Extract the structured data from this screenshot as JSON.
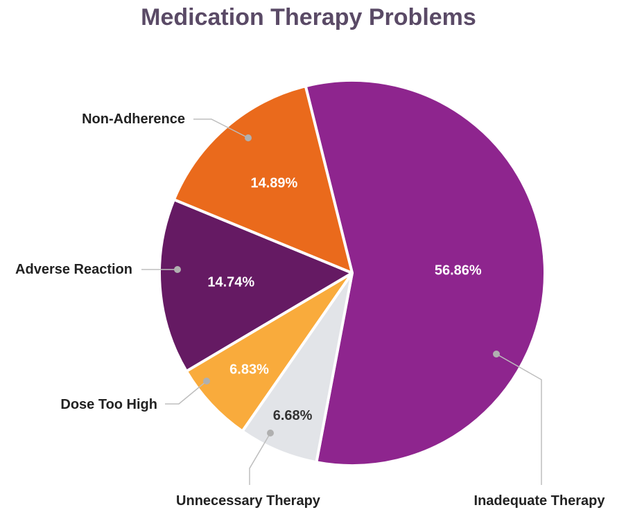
{
  "chart_data": {
    "type": "pie",
    "title": "Medication Therapy Problems",
    "slices": [
      {
        "label": "Inadequate Therapy",
        "value": 56.86,
        "display": "56.86%",
        "color": "#8e258e",
        "text_color": "#ffffff"
      },
      {
        "label": "Unnecessary Therapy",
        "value": 6.68,
        "display": "6.68%",
        "color": "#e2e4e8",
        "text_color": "#333333"
      },
      {
        "label": "Dose Too High",
        "value": 6.83,
        "display": "6.83%",
        "color": "#f9ab3c",
        "text_color": "#ffffff"
      },
      {
        "label": "Adverse Reaction",
        "value": 14.74,
        "display": "14.74%",
        "color": "#651a63",
        "text_color": "#ffffff"
      },
      {
        "label": "Non-Adherence",
        "value": 14.89,
        "display": "14.89%",
        "color": "#ea6a1c",
        "text_color": "#ffffff"
      }
    ],
    "legend": "none"
  }
}
